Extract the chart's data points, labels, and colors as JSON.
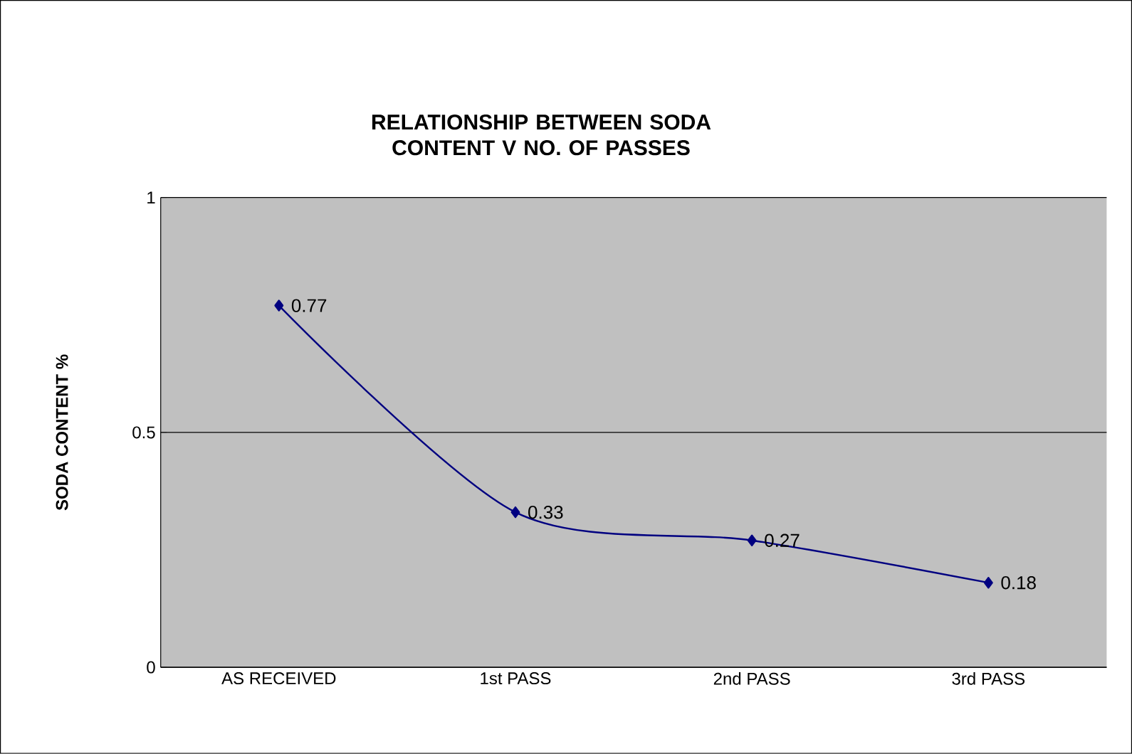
{
  "chart_data": {
    "type": "line",
    "title": "RELATIONSHIP BETWEEN SODA CONTENT V NO. OF PASSES",
    "ylabel": "SODA CONTENT %",
    "categories": [
      "AS RECEIVED",
      "1st PASS",
      "2nd PASS",
      "3rd PASS"
    ],
    "values": [
      0.77,
      0.33,
      0.27,
      0.18
    ],
    "color": "#000080",
    "marker": "diamond",
    "line_style": "solid",
    "ylim": [
      0,
      1
    ],
    "yticks": [
      0,
      0.5,
      1
    ],
    "grid": "y",
    "data_labels": true
  }
}
